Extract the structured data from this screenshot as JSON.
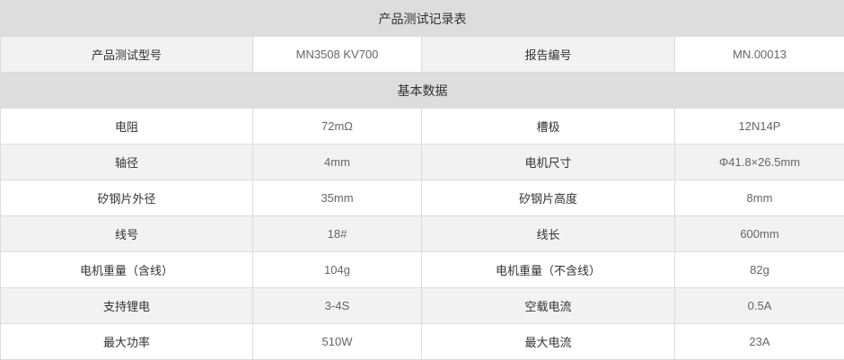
{
  "title": "产品测试记录表",
  "header": {
    "model_label": "产品测试型号",
    "model_value": "MN3508 KV700",
    "report_label": "报告编号",
    "report_value": "MN.00013"
  },
  "section": "基本数据",
  "rows": [
    {
      "l1": "电阻",
      "v1": "72mΩ",
      "l2": "槽极",
      "v2": "12N14P"
    },
    {
      "l1": "轴径",
      "v1": "4mm",
      "l2": "电机尺寸",
      "v2": "Φ41.8×26.5mm"
    },
    {
      "l1": "矽钢片外径",
      "v1": "35mm",
      "l2": "矽钢片高度",
      "v2": "8mm"
    },
    {
      "l1": "线号",
      "v1": "18#",
      "l2": "线长",
      "v2": "600mm"
    },
    {
      "l1": "电机重量（含线）",
      "v1": "104g",
      "l2": "电机重量（不含线）",
      "v2": "82g"
    },
    {
      "l1": "支持锂电",
      "v1": "3-4S",
      "l2": "空载电流",
      "v2": "0.5A"
    },
    {
      "l1": "最大功率",
      "v1": "510W",
      "l2": "最大电流",
      "v2": "23A"
    }
  ]
}
